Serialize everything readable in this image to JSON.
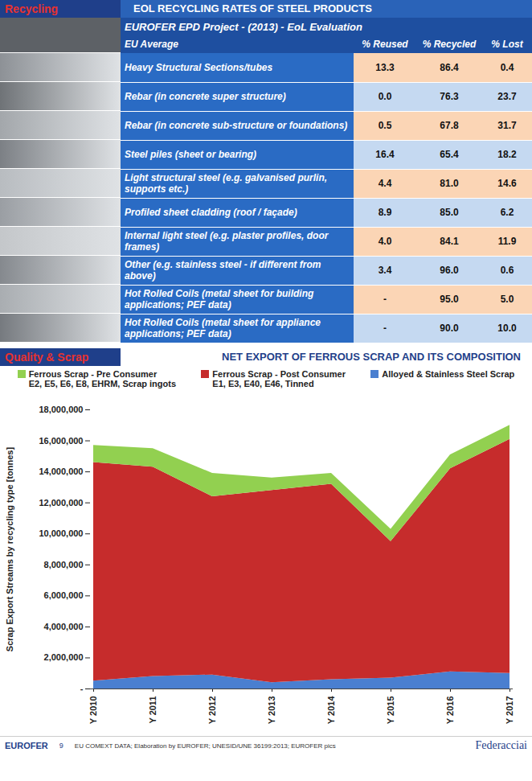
{
  "header": {
    "section": "Recycling",
    "title": "EOL RECYCLING RATES OF STEEL PRODUCTS"
  },
  "table": {
    "title": "EUROFER EPD Project - (2013) - EoL Evaluation",
    "columns": [
      "EU Average",
      "% Reused",
      "% Recycled",
      "% Lost"
    ],
    "rows": [
      [
        "Heavy Structural Sections/tubes",
        "13.3",
        "86.4",
        "0.4"
      ],
      [
        "Rebar (in concrete super structure)",
        "0.0",
        "76.3",
        "23.7"
      ],
      [
        "Rebar (in concrete sub-structure or foundations)",
        "0.5",
        "67.8",
        "31.7"
      ],
      [
        "Steel piles (sheet or bearing)",
        "16.4",
        "65.4",
        "18.2"
      ],
      [
        "Light structural steel (e.g. galvanised purlin, supports etc.)",
        "4.4",
        "81.0",
        "14.6"
      ],
      [
        "Profiled sheet cladding (roof / façade)",
        "8.9",
        "85.0",
        "6.2"
      ],
      [
        "Internal light steel (e.g. plaster profiles, door frames)",
        "4.0",
        "84.1",
        "11.9"
      ],
      [
        "Other (e.g. stainless steel - if different from above)",
        "3.4",
        "96.0",
        "0.6"
      ],
      [
        "Hot Rolled Coils (metal sheet for building applications; PEF data)",
        "-",
        "95.0",
        "5.0"
      ],
      [
        "Hot Rolled Coils (metal sheet for appliance applications; PEF data)",
        "-",
        "90.0",
        "10.0"
      ]
    ]
  },
  "chart_data": {
    "type": "area",
    "section": "Quality & Scrap",
    "title": "NET EXPORT OF FERROUS SCRAP AND ITS COMPOSITION",
    "categories": [
      "Y 2010",
      "Y 2011",
      "Y 2012",
      "Y 2013",
      "Y 2014",
      "Y 2015",
      "Y 2016",
      "Y 2017"
    ],
    "series": [
      {
        "name": "Alloyed & Stainless Steel Scrap",
        "color": "#4a7fd0",
        "values": [
          500000,
          800000,
          900000,
          400000,
          600000,
          700000,
          1100000,
          1000000
        ]
      },
      {
        "name": "Ferrous Scrap - Post Consumer",
        "codes": "E1, E3, E40, E46, Tinned",
        "color": "#c62c2c",
        "values": [
          14100000,
          13500000,
          11500000,
          12400000,
          12600000,
          8800000,
          13100000,
          15100000
        ]
      },
      {
        "name": "Ferrous Scrap - Pre Consumer",
        "codes": "E2, E5, E6, E8, EHRM, Scrap ingots",
        "color": "#92d050",
        "values": [
          1100000,
          1200000,
          1500000,
          800000,
          700000,
          800000,
          900000,
          900000
        ]
      }
    ],
    "stacked": true,
    "ylabel": "Scrap Export Streams by recycling type [tonnes]",
    "ylim": [
      0,
      18000000
    ],
    "yticks": [
      {
        "value": 0,
        "label": "-"
      },
      {
        "value": 2000000,
        "label": "2,000,000"
      },
      {
        "value": 4000000,
        "label": "4,000,000"
      },
      {
        "value": 6000000,
        "label": "6,000,000"
      },
      {
        "value": 8000000,
        "label": "8,000,000"
      },
      {
        "value": 10000000,
        "label": "10,000,000"
      },
      {
        "value": 12000000,
        "label": "12,000,000"
      },
      {
        "value": 14000000,
        "label": "14,000,000"
      },
      {
        "value": 16000000,
        "label": "16,000,000"
      },
      {
        "value": 18000000,
        "label": "18,000,000"
      }
    ],
    "legend": "top",
    "grid": false
  },
  "footer": {
    "logo": "EUROFER",
    "page": "9",
    "source": "EU COMEXT DATA; Elaboration by EUROFER; UNESID/UNE 36199:2013; EUROFER pics",
    "brand": "Federacciai"
  }
}
